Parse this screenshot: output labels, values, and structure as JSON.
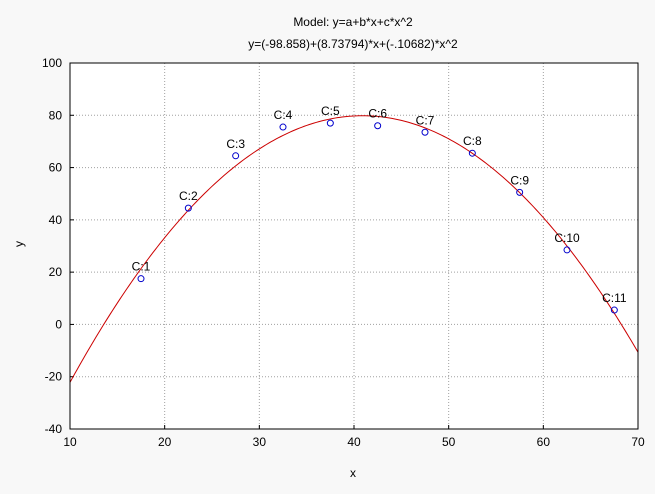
{
  "chart_data": {
    "type": "scatter",
    "title": "Model: y=a+b*x+c*x^2",
    "subtitle": "y=(-98.858)+(8.73794)*x+(-.10682)*x^2",
    "xlabel": "x",
    "ylabel": "y",
    "xlim": [
      10,
      70
    ],
    "ylim": [
      -40,
      100
    ],
    "xticks": [
      10,
      20,
      30,
      40,
      50,
      60,
      70
    ],
    "yticks": [
      -40,
      -20,
      0,
      20,
      40,
      60,
      80,
      100
    ],
    "grid": true,
    "points": [
      {
        "label": "C:1",
        "x": 17.5,
        "y": 17.5
      },
      {
        "label": "C:2",
        "x": 22.5,
        "y": 44.5
      },
      {
        "label": "C:3",
        "x": 27.5,
        "y": 64.5
      },
      {
        "label": "C:4",
        "x": 32.5,
        "y": 75.5
      },
      {
        "label": "C:5",
        "x": 37.5,
        "y": 77.0
      },
      {
        "label": "C:6",
        "x": 42.5,
        "y": 76.0
      },
      {
        "label": "C:7",
        "x": 47.5,
        "y": 73.5
      },
      {
        "label": "C:8",
        "x": 52.5,
        "y": 65.5
      },
      {
        "label": "C:9",
        "x": 57.5,
        "y": 50.5
      },
      {
        "label": "C:10",
        "x": 62.5,
        "y": 28.5
      },
      {
        "label": "C:11",
        "x": 67.5,
        "y": 5.5
      }
    ],
    "model": {
      "a": -98.858,
      "b": 8.73794,
      "c": -0.10682
    },
    "colors": {
      "curve": "#cc0000",
      "points": "#0000cc",
      "grid": "#a0a0a0",
      "background": "#ffffff",
      "frame": "#000000"
    }
  }
}
